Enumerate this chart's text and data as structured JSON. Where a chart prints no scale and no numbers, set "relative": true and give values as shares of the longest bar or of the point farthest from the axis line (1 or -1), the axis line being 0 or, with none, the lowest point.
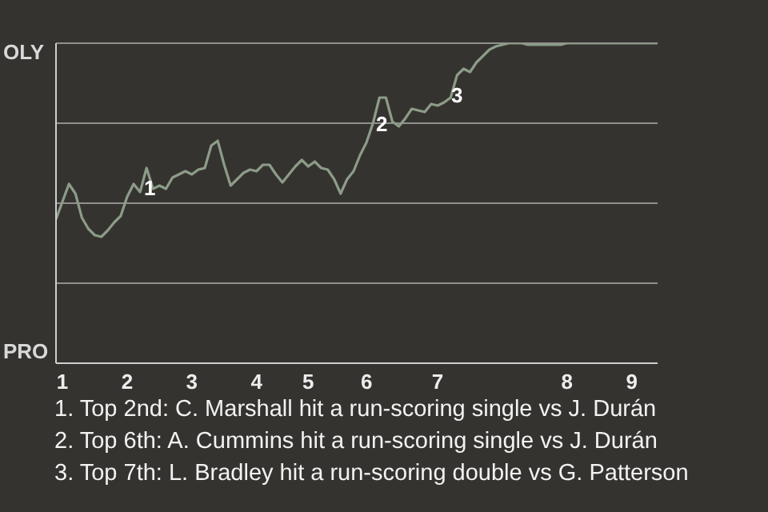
{
  "chart_data": {
    "type": "line",
    "relative": true,
    "categories": [
      null,
      "1",
      null,
      null,
      null,
      null,
      null,
      null,
      null,
      null,
      null,
      "2",
      null,
      null,
      null,
      null,
      null,
      null,
      null,
      null,
      null,
      "3",
      null,
      null,
      null,
      null,
      null,
      null,
      null,
      null,
      null,
      "4",
      null,
      null,
      null,
      null,
      null,
      null,
      null,
      "5",
      null,
      null,
      null,
      null,
      null,
      null,
      null,
      null,
      "6",
      null,
      null,
      null,
      null,
      null,
      null,
      null,
      null,
      null,
      null,
      "7",
      null,
      null,
      null,
      null,
      null,
      null,
      null,
      null,
      null,
      null,
      null,
      null,
      null,
      null,
      null,
      null,
      null,
      null,
      null,
      "8",
      null,
      null,
      null,
      null,
      null,
      null,
      null,
      null,
      null,
      "9",
      null,
      null,
      null,
      null
    ],
    "grid": "y",
    "series": [
      {
        "color": "#8c9c88",
        "values": [
          0.45,
          0.505,
          0.56,
          0.53,
          0.455,
          0.42,
          0.4,
          0.395,
          0.415,
          0.44,
          0.46,
          0.52,
          0.56,
          0.535,
          0.61,
          0.545,
          0.555,
          0.545,
          0.58,
          0.59,
          0.6,
          0.59,
          0.605,
          0.61,
          0.68,
          0.695,
          0.62,
          0.555,
          0.575,
          0.595,
          0.605,
          0.6,
          0.62,
          0.62,
          0.59,
          0.565,
          0.59,
          0.615,
          0.635,
          0.615,
          0.63,
          0.61,
          0.605,
          0.575,
          0.53,
          0.575,
          0.6,
          0.65,
          0.69,
          0.75,
          0.83,
          0.83,
          0.755,
          0.74,
          0.765,
          0.795,
          0.79,
          0.785,
          0.81,
          0.805,
          0.815,
          0.83,
          0.9,
          0.92,
          0.91,
          0.94,
          0.96,
          0.98,
          0.99,
          0.995,
          1,
          1,
          1,
          0.995,
          0.995,
          0.995,
          0.995,
          0.995,
          0.995,
          1,
          1,
          1,
          1,
          1,
          1,
          1,
          1,
          1,
          1,
          1,
          1,
          1,
          1,
          1
        ]
      }
    ],
    "annotations": [
      "OLY",
      "PRO",
      "1",
      "2",
      "3",
      "1. Top 2nd: C. Marshall hit a run-scoring single vs J. Durán",
      "2. Top 6th: A. Cummins hit a run-scoring single vs J. Durán",
      "3. Top 7th: L. Bradley hit a run-scoring double vs G. Patterson"
    ]
  }
}
